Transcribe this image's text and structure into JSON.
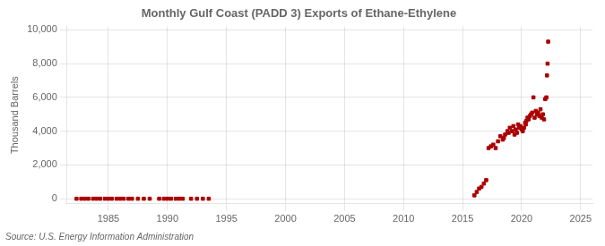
{
  "chart_data": {
    "type": "scatter",
    "title": "Monthly Gulf Coast (PADD 3) Exports of Ethane-Ethylene",
    "ylabel": "Thousand Barrels",
    "annotation": "Source: U.S. Energy Information Administration",
    "xlim": [
      1981.5,
      2026
    ],
    "ylim": [
      -300,
      10200
    ],
    "xticks": [
      1985,
      1990,
      1995,
      2000,
      2005,
      2010,
      2015,
      2020,
      2025
    ],
    "yticks": [
      0,
      {
        "value": 2000,
        "label": "2,000"
      },
      {
        "value": 4000,
        "label": "4,000"
      },
      {
        "value": 6000,
        "label": "6,000"
      },
      {
        "value": 8000,
        "label": "8,000"
      },
      {
        "value": 10000,
        "label": "10,000"
      }
    ],
    "grid": true,
    "marker": "square",
    "series": [
      {
        "color": "#aa0000",
        "x": [
          1982.3,
          1982.7,
          1983.0,
          1983.3,
          1983.7,
          1984.0,
          1984.3,
          1984.7,
          1985.0,
          1985.3,
          1985.7,
          1986.0,
          1986.3,
          1986.7,
          1987.0,
          1987.5,
          1988.0,
          1988.5,
          1989.3,
          1989.7,
          1990.0,
          1990.3,
          1990.7,
          1991.0,
          1991.3,
          1992.0,
          1992.5,
          1993.0,
          1993.5
        ],
        "values": [
          0,
          0,
          0,
          0,
          0,
          0,
          0,
          0,
          0,
          0,
          0,
          0,
          0,
          0,
          0,
          0,
          0,
          0,
          0,
          0,
          0,
          0,
          0,
          0,
          0,
          0,
          0,
          0,
          0
        ]
      },
      {
        "color": "#aa0000",
        "x": [
          2016.0,
          2016.2,
          2016.4,
          2016.6,
          2016.8,
          2017.0,
          2017.2,
          2017.4,
          2017.6,
          2017.8,
          2018.0,
          2018.2,
          2018.4,
          2018.5,
          2018.6,
          2018.8,
          2018.9,
          2019.0,
          2019.2,
          2019.3,
          2019.4,
          2019.5,
          2019.6,
          2019.7,
          2019.8,
          2019.9,
          2020.0,
          2020.1,
          2020.2,
          2020.3,
          2020.35,
          2020.4,
          2020.5,
          2020.6,
          2020.7,
          2020.8,
          2020.9,
          2021.0,
          2021.1,
          2021.2,
          2021.3,
          2021.4,
          2021.5,
          2021.6,
          2021.7,
          2021.8,
          2021.9,
          2022.0,
          2022.1,
          2022.15,
          2022.2,
          2022.25
        ],
        "values": [
          200,
          400,
          600,
          700,
          900,
          1100,
          3000,
          3100,
          3200,
          3000,
          3400,
          3700,
          3500,
          3600,
          3800,
          4000,
          3900,
          4200,
          4000,
          4300,
          3800,
          4100,
          3900,
          4400,
          4200,
          4300,
          4100,
          4000,
          4200,
          4500,
          4400,
          4600,
          4800,
          4700,
          4900,
          5000,
          5100,
          6000,
          4800,
          5200,
          5000,
          5100,
          4900,
          5300,
          4800,
          5000,
          4700,
          5900,
          6000,
          7300,
          8000,
          9300
        ]
      }
    ]
  }
}
